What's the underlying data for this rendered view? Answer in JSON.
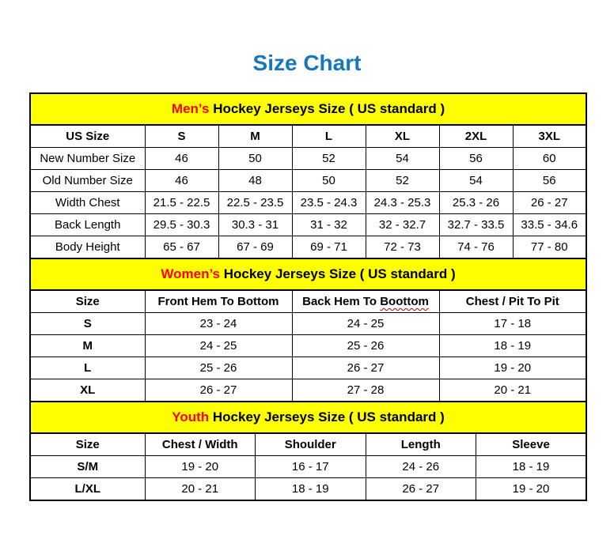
{
  "page": {
    "title": "Size Chart"
  },
  "colors": {
    "title_blue": "#1577BE",
    "banner_yellow": "#FFFF00",
    "accent_red": "#FF0000",
    "squiggle_red": "#C00000",
    "border_black": "#000000"
  },
  "mens": {
    "banner_accent": "Men’s",
    "banner_rest": " Hockey Jerseys Size ( US standard )",
    "headers": [
      "US Size",
      "S",
      "M",
      "L",
      "XL",
      "2XL",
      "3XL"
    ],
    "rows": [
      {
        "label": "New Number Size",
        "values": [
          "46",
          "50",
          "52",
          "54",
          "56",
          "60"
        ]
      },
      {
        "label": "Old Number Size",
        "values": [
          "46",
          "48",
          "50",
          "52",
          "54",
          "56"
        ]
      },
      {
        "label": "Width Chest",
        "values": [
          "21.5 - 22.5",
          "22.5 - 23.5",
          "23.5 - 24.3",
          "24.3 - 25.3",
          "25.3 - 26",
          "26 - 27"
        ]
      },
      {
        "label": "Back Length",
        "values": [
          "29.5 - 30.3",
          "30.3 - 31",
          "31 - 32",
          "32 - 32.7",
          "32.7 - 33.5",
          "33.5 - 34.6"
        ]
      },
      {
        "label": "Body Height",
        "values": [
          "65 - 67",
          "67 - 69",
          "69 - 71",
          "72 - 73",
          "74 - 76",
          "77 - 80"
        ]
      }
    ]
  },
  "womens": {
    "banner_accent": "Women’s",
    "banner_rest": " Hockey Jerseys Size ( US standard )",
    "headers": [
      "Size",
      "Front Hem To Bottom",
      "Back Hem To Boottom",
      "Chest / Pit To Pit"
    ],
    "header_back_prefix": "Back Hem To ",
    "header_back_wavy_word": "Boottom",
    "rows": [
      {
        "label": "S",
        "values": [
          "23 - 24",
          "24 - 25",
          "17 - 18"
        ]
      },
      {
        "label": "M",
        "values": [
          "24 - 25",
          "25 - 26",
          "18 - 19"
        ]
      },
      {
        "label": "L",
        "values": [
          "25 - 26",
          "26 - 27",
          "19 - 20"
        ]
      },
      {
        "label": "XL",
        "values": [
          "26 - 27",
          "27 - 28",
          "20 - 21"
        ]
      }
    ]
  },
  "youth": {
    "banner_accent": "Youth",
    "banner_rest": " Hockey Jerseys Size ( US standard )",
    "headers": [
      "Size",
      "Chest / Width",
      "Shoulder",
      "Length",
      "Sleeve"
    ],
    "rows": [
      {
        "label": "S/M",
        "values": [
          "19 - 20",
          "16 - 17",
          "24 - 26",
          "18 - 19"
        ]
      },
      {
        "label": "L/XL",
        "values": [
          "20 - 21",
          "18 - 19",
          "26 - 27",
          "19 - 20"
        ]
      }
    ]
  }
}
